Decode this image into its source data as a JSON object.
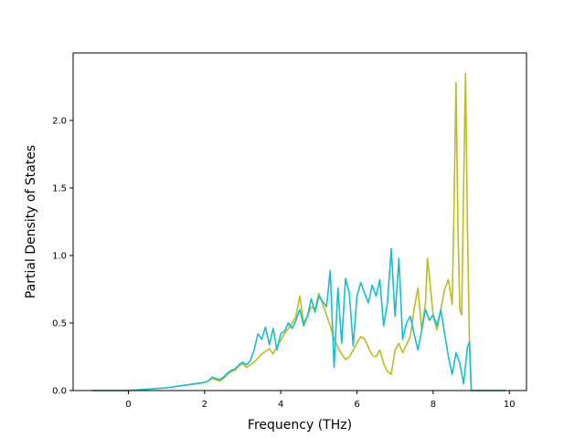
{
  "chart_data": {
    "type": "line",
    "title": "",
    "xlabel": "Frequency (THz)",
    "ylabel": "Partial Density of States",
    "xlim": [
      -1.45,
      10.45
    ],
    "ylim": [
      0,
      2.5
    ],
    "xticks": [
      0,
      2,
      4,
      6,
      8,
      10
    ],
    "xtick_labels": [
      "0",
      "2",
      "4",
      "6",
      "8",
      "10"
    ],
    "yticks": [
      0.0,
      0.5,
      1.0,
      1.5,
      2.0
    ],
    "ytick_labels": [
      "0.0",
      "0.5",
      "1.0",
      "1.5",
      "2.0"
    ],
    "grid": false,
    "legend": "none",
    "series": [
      {
        "color": "#bcbd22",
        "x": [
          -0.95,
          0.0,
          0.5,
          1.0,
          1.5,
          2.0,
          2.1,
          2.2,
          2.3,
          2.4,
          2.5,
          2.6,
          2.7,
          2.8,
          2.9,
          3.0,
          3.1,
          3.2,
          3.3,
          3.4,
          3.5,
          3.6,
          3.7,
          3.8,
          3.9,
          4.0,
          4.1,
          4.2,
          4.3,
          4.4,
          4.5,
          4.6,
          4.7,
          4.8,
          4.9,
          5.0,
          5.1,
          5.2,
          5.3,
          5.4,
          5.5,
          5.6,
          5.7,
          5.8,
          5.9,
          6.0,
          6.1,
          6.2,
          6.3,
          6.4,
          6.5,
          6.6,
          6.7,
          6.8,
          6.9,
          7.0,
          7.1,
          7.2,
          7.3,
          7.4,
          7.5,
          7.6,
          7.7,
          7.8,
          7.85,
          7.9,
          8.0,
          8.1,
          8.2,
          8.3,
          8.4,
          8.5,
          8.55,
          8.6,
          8.65,
          8.7,
          8.75,
          8.8,
          8.85,
          8.9,
          8.95,
          9.0,
          9.05,
          9.5,
          9.9
        ],
        "y": [
          0.0,
          0.0,
          0.01,
          0.02,
          0.04,
          0.06,
          0.07,
          0.09,
          0.08,
          0.07,
          0.09,
          0.12,
          0.14,
          0.15,
          0.18,
          0.2,
          0.17,
          0.19,
          0.21,
          0.24,
          0.27,
          0.29,
          0.31,
          0.27,
          0.33,
          0.37,
          0.42,
          0.46,
          0.5,
          0.55,
          0.7,
          0.5,
          0.55,
          0.62,
          0.6,
          0.72,
          0.64,
          0.56,
          0.48,
          0.38,
          0.32,
          0.27,
          0.23,
          0.25,
          0.3,
          0.35,
          0.4,
          0.38,
          0.32,
          0.26,
          0.25,
          0.3,
          0.2,
          0.14,
          0.12,
          0.3,
          0.35,
          0.28,
          0.34,
          0.4,
          0.6,
          0.76,
          0.45,
          0.65,
          0.98,
          0.85,
          0.55,
          0.45,
          0.6,
          0.75,
          0.82,
          0.64,
          1.4,
          2.28,
          1.2,
          0.6,
          0.56,
          1.5,
          2.35,
          1.2,
          0.4,
          0.0,
          0.0,
          0.0,
          0.0
        ]
      },
      {
        "color": "#17becf",
        "x": [
          -0.95,
          0.0,
          0.5,
          1.0,
          1.5,
          2.0,
          2.1,
          2.2,
          2.3,
          2.4,
          2.5,
          2.6,
          2.7,
          2.8,
          2.9,
          3.0,
          3.1,
          3.2,
          3.3,
          3.4,
          3.5,
          3.6,
          3.7,
          3.8,
          3.9,
          4.0,
          4.1,
          4.2,
          4.3,
          4.4,
          4.5,
          4.6,
          4.7,
          4.8,
          4.9,
          5.0,
          5.1,
          5.2,
          5.3,
          5.4,
          5.5,
          5.6,
          5.7,
          5.8,
          5.9,
          6.0,
          6.1,
          6.2,
          6.3,
          6.4,
          6.5,
          6.6,
          6.7,
          6.8,
          6.9,
          7.0,
          7.1,
          7.2,
          7.3,
          7.4,
          7.5,
          7.6,
          7.7,
          7.8,
          7.9,
          8.0,
          8.1,
          8.2,
          8.3,
          8.4,
          8.5,
          8.6,
          8.7,
          8.8,
          8.9,
          8.95,
          9.0,
          9.05,
          9.5,
          9.9
        ],
        "y": [
          0.0,
          0.0,
          0.01,
          0.02,
          0.04,
          0.06,
          0.07,
          0.1,
          0.09,
          0.08,
          0.1,
          0.13,
          0.15,
          0.16,
          0.19,
          0.21,
          0.19,
          0.22,
          0.3,
          0.42,
          0.38,
          0.47,
          0.34,
          0.46,
          0.3,
          0.42,
          0.44,
          0.5,
          0.46,
          0.52,
          0.6,
          0.48,
          0.55,
          0.68,
          0.58,
          0.7,
          0.66,
          0.62,
          0.89,
          0.17,
          0.76,
          0.35,
          0.83,
          0.72,
          0.33,
          0.7,
          0.8,
          0.72,
          0.65,
          0.78,
          0.7,
          0.82,
          0.48,
          0.65,
          1.05,
          0.55,
          0.98,
          0.38,
          0.5,
          0.55,
          0.42,
          0.3,
          0.45,
          0.6,
          0.52,
          0.56,
          0.48,
          0.6,
          0.42,
          0.25,
          0.12,
          0.28,
          0.2,
          0.05,
          0.32,
          0.36,
          0.0,
          0.0,
          0.0,
          0.0
        ]
      }
    ]
  }
}
